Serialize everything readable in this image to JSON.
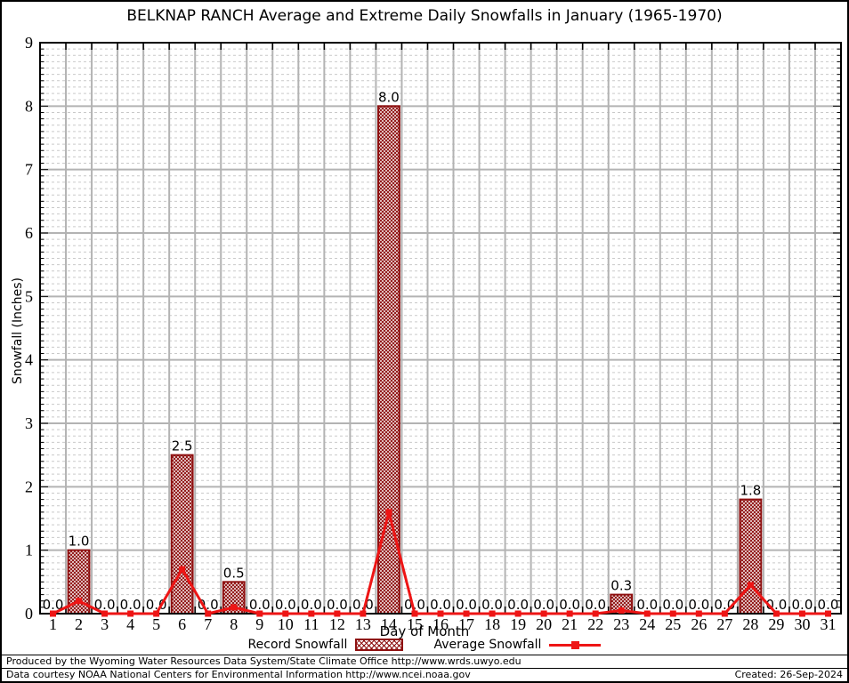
{
  "chart_data": {
    "type": "bar",
    "title": "BELKNAP RANCH Average and Extreme Daily Snowfalls in January (1965-1970)",
    "xlabel": "Day of Month",
    "ylabel": "Snowfall (Inches)",
    "ylim": [
      0,
      9
    ],
    "y_ticks": [
      0,
      1,
      2,
      3,
      4,
      5,
      6,
      7,
      8,
      9
    ],
    "categories": [
      1,
      2,
      3,
      4,
      5,
      6,
      7,
      8,
      9,
      10,
      11,
      12,
      13,
      14,
      15,
      16,
      17,
      18,
      19,
      20,
      21,
      22,
      23,
      24,
      25,
      26,
      27,
      28,
      29,
      30,
      31
    ],
    "series": [
      {
        "name": "Record Snowfall",
        "type": "bar",
        "color": "#8e1010",
        "values": [
          0.0,
          1.0,
          0.0,
          0.0,
          0.0,
          2.5,
          0.0,
          0.5,
          0.0,
          0.0,
          0.0,
          0.0,
          0.0,
          8.0,
          0.0,
          0.0,
          0.0,
          0.0,
          0.0,
          0.0,
          0.0,
          0.0,
          0.3,
          0.0,
          0.0,
          0.0,
          0.0,
          1.8,
          0.0,
          0.0,
          0.0
        ]
      },
      {
        "name": "Average Snowfall",
        "type": "line",
        "color": "#ee1515",
        "values": [
          0,
          0.2,
          0,
          0,
          0,
          0.7,
          0,
          0.1,
          0,
          0,
          0,
          0,
          0,
          1.6,
          0,
          0,
          0,
          0,
          0,
          0,
          0,
          0,
          0.05,
          0,
          0,
          0,
          0,
          0.45,
          0,
          0,
          0
        ]
      }
    ],
    "point_labels": [
      "0.0",
      "1.0",
      "0.0",
      "0.0",
      "0.0",
      "2.5",
      "0.0",
      "0.5",
      "0.0",
      "0.0",
      "0.0",
      "0.0",
      "0.0",
      "8.0",
      "0.0",
      "0.0",
      "0.0",
      "0.0",
      "0.0",
      "0.0",
      "0.0",
      "0.0",
      "0.3",
      "0.0",
      "0.0",
      "0.0",
      "0.0",
      "1.8",
      "0.0",
      "0.0",
      "0.0"
    ],
    "legend_position": "bottom",
    "grid": {
      "major_color": "#b3b3b3",
      "minor_color": "#c9c9c9",
      "major_step": 1,
      "minor_step": 0.1,
      "frame_color": "#000000"
    }
  },
  "footer": {
    "line1": "Produced by the Wyoming Water Resources Data System/State Climate Office http://www.wrds.uwyo.edu",
    "line2": "Data courtesy NOAA National Centers for Environmental Information http://www.ncei.noaa.gov",
    "created": "Created: 26-Sep-2024"
  }
}
